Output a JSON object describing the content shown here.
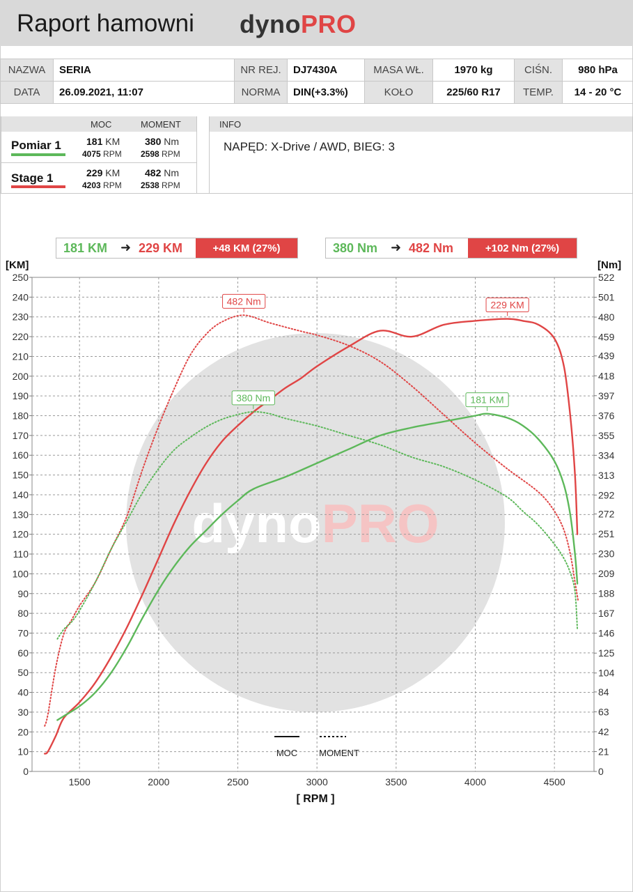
{
  "header": {
    "title": "Raport hamowni",
    "logo_dark": "dyno",
    "logo_red": "PRO"
  },
  "info_table": {
    "nazwa_label": "NAZWA",
    "nazwa": "SERIA",
    "nr_rej_label": "NR REJ.",
    "nr_rej": "DJ7430A",
    "masa_label": "MASA WŁ.",
    "masa": "1970 kg",
    "cisn_label": "CIŚN.",
    "cisn": "980 hPa",
    "data_label": "DATA",
    "data": "26.09.2021, 11:07",
    "norma_label": "NORMA",
    "norma": "DIN(+3.3%)",
    "kolo_label": "KOŁO",
    "kolo": "225/60 R17",
    "temp_label": "TEMP.",
    "temp": "14 - 20 °C"
  },
  "results": {
    "moc_header": "MOC",
    "moment_header": "MOMENT",
    "rows": [
      {
        "name": "Pomiar 1",
        "color": "#5db85a",
        "power": "181",
        "power_unit": "KM",
        "power_rpm": "4075",
        "torque": "380",
        "torque_unit": "Nm",
        "torque_rpm": "2598",
        "rpm_unit": "RPM"
      },
      {
        "name": "Stage 1",
        "color": "#e04545",
        "power": "229",
        "power_unit": "KM",
        "power_rpm": "4203",
        "torque": "482",
        "torque_unit": "Nm",
        "torque_rpm": "2538",
        "rpm_unit": "RPM"
      }
    ]
  },
  "info": {
    "header": "INFO",
    "text": "NAPĘD: X-Drive / AWD,  BIEG: 3"
  },
  "gains": {
    "power": {
      "from": "181 KM",
      "to": "229 KM",
      "diff": "+48 KM  (27%)"
    },
    "torque": {
      "from": "380 Nm",
      "to": "482 Nm",
      "diff": "+102 Nm  (27%)"
    }
  },
  "colors": {
    "green": "#5db85a",
    "red": "#e04545",
    "grid": "#9a9a9a",
    "watermark_circle": "#e2e2e2"
  },
  "chart_data": {
    "type": "line",
    "xlabel": "[ RPM ]",
    "ylabel_left": "[KM]",
    "ylabel_right": "[Nm]",
    "xlim": [
      1200,
      4750
    ],
    "ylim_left": [
      0,
      250
    ],
    "ylim_right": [
      0,
      522
    ],
    "x_ticks": [
      1500,
      2000,
      2500,
      3000,
      3500,
      4000,
      4500
    ],
    "y_ticks_left": [
      0,
      10,
      20,
      30,
      40,
      50,
      60,
      70,
      80,
      90,
      100,
      110,
      120,
      130,
      140,
      150,
      160,
      170,
      180,
      190,
      200,
      210,
      220,
      230,
      240,
      250
    ],
    "y_ticks_right": [
      "0",
      "21",
      "42",
      "63",
      "84",
      "104",
      "125",
      "146",
      "167",
      "188",
      "209",
      "230",
      "251",
      "272",
      "292",
      "313",
      "334",
      "355",
      "376",
      "397",
      "418",
      "439",
      "459",
      "480",
      "501",
      "522"
    ],
    "grid": true,
    "watermark": {
      "dark": "dyno",
      "red": "PRO"
    },
    "legend": {
      "power_label": "MOC",
      "torque_label": "MOMENT"
    },
    "annotations": [
      {
        "series": "Stage 1 torque",
        "text": "482 Nm",
        "x": 2538,
        "y_nm": 482
      },
      {
        "series": "Stage 1 power",
        "text": "229 KM",
        "x": 4203,
        "y_km": 229
      },
      {
        "series": "Pomiar 1 torque",
        "text": "380 Nm",
        "x": 2598,
        "y_nm": 380
      },
      {
        "series": "Pomiar 1 power",
        "text": "181 KM",
        "x": 4075,
        "y_km": 181
      }
    ],
    "series": [
      {
        "name": "Stage 1",
        "kind": "power",
        "axis": "left",
        "style": "solid",
        "color": "#e04545",
        "x": [
          1280,
          1300,
          1350,
          1400,
          1500,
          1600,
          1700,
          1800,
          1900,
          2000,
          2100,
          2200,
          2300,
          2400,
          2500,
          2600,
          2700,
          2800,
          2900,
          3000,
          3200,
          3400,
          3600,
          3800,
          4000,
          4203,
          4300,
          4400,
          4500,
          4560,
          4600,
          4630,
          4645
        ],
        "y": [
          9,
          10,
          18,
          27,
          35,
          45,
          58,
          73,
          90,
          108,
          126,
          142,
          156,
          167,
          175,
          182,
          188,
          194,
          199,
          205,
          215,
          223,
          220,
          226,
          228,
          229,
          228,
          226,
          219,
          205,
          180,
          150,
          120
        ]
      },
      {
        "name": "Stage 1",
        "kind": "torque",
        "axis": "right",
        "style": "dotted",
        "color": "#e04545",
        "x": [
          1280,
          1300,
          1350,
          1400,
          1450,
          1500,
          1600,
          1700,
          1800,
          1900,
          2000,
          2100,
          2200,
          2300,
          2400,
          2538,
          2700,
          2900,
          3000,
          3200,
          3400,
          3600,
          3800,
          4000,
          4200,
          4400,
          4500,
          4560,
          4600,
          4630,
          4650
        ],
        "y": [
          48,
          60,
          110,
          145,
          160,
          175,
          200,
          235,
          270,
          320,
          365,
          405,
          440,
          462,
          475,
          482,
          474,
          465,
          461,
          450,
          433,
          407,
          377,
          347,
          320,
          295,
          275,
          255,
          230,
          200,
          180
        ]
      },
      {
        "name": "Pomiar 1",
        "kind": "power",
        "axis": "left",
        "style": "solid",
        "color": "#5db85a",
        "x": [
          1360,
          1400,
          1500,
          1600,
          1700,
          1800,
          1900,
          2000,
          2100,
          2200,
          2300,
          2400,
          2500,
          2600,
          2800,
          3000,
          3200,
          3400,
          3600,
          3800,
          4000,
          4075,
          4200,
          4300,
          4400,
          4500,
          4560,
          4600,
          4630,
          4645
        ],
        "y": [
          26,
          28,
          33,
          40,
          50,
          63,
          78,
          92,
          104,
          114,
          122,
          130,
          137,
          143,
          149,
          156,
          163,
          170,
          174,
          177,
          180,
          181,
          179,
          175,
          168,
          157,
          145,
          130,
          110,
          95
        ]
      },
      {
        "name": "Pomiar 1",
        "kind": "torque",
        "axis": "right",
        "style": "dotted",
        "color": "#5db85a",
        "x": [
          1360,
          1400,
          1450,
          1500,
          1600,
          1700,
          1800,
          1900,
          2000,
          2100,
          2200,
          2300,
          2400,
          2500,
          2598,
          2700,
          2800,
          3000,
          3200,
          3400,
          3600,
          3800,
          4000,
          4200,
          4300,
          4400,
          4500,
          4560,
          4600,
          4630,
          4645
        ],
        "y": [
          140,
          150,
          158,
          170,
          200,
          235,
          265,
          295,
          320,
          340,
          353,
          364,
          372,
          377,
          380,
          378,
          373,
          365,
          355,
          345,
          332,
          322,
          308,
          290,
          275,
          260,
          240,
          225,
          210,
          190,
          150
        ]
      }
    ]
  }
}
